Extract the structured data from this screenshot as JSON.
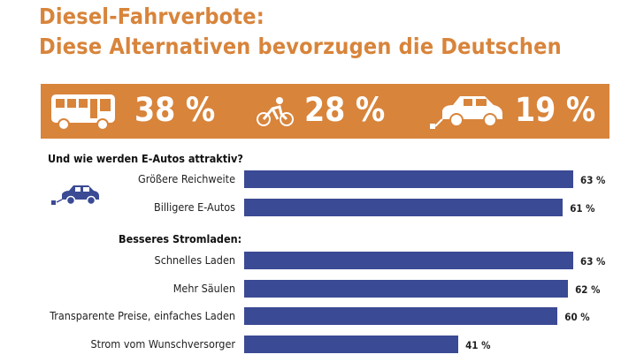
{
  "title": {
    "line1": "Diesel-Fahrverbote:",
    "line2": "Diese Alternativen bevorzugen die Deutschen"
  },
  "banner": {
    "items": [
      {
        "icon": "bus-icon",
        "value": "38 %"
      },
      {
        "icon": "bicycle-icon",
        "value": "28 %"
      },
      {
        "icon": "electric-car-icon",
        "value": "19 %"
      }
    ]
  },
  "colors": {
    "accent": "#d8843b",
    "bar": "#3b4a94"
  },
  "chart_data": {
    "type": "bar",
    "orientation": "horizontal",
    "xlim": [
      0,
      63
    ],
    "sections": [
      {
        "heading": "Und wie werden E-Autos attraktiv?",
        "icon": "electric-car-icon",
        "categories": [
          "Größere Reichweite",
          "Billigere E-Autos"
        ],
        "values": [
          63,
          61
        ],
        "labels": [
          "63 %",
          "61 %"
        ]
      },
      {
        "heading": "Besseres Stromladen:",
        "categories": [
          "Schnelles Laden",
          "Mehr Säulen",
          "Transparente Preise, einfaches Laden",
          "Strom vom Wunschversorger"
        ],
        "values": [
          63,
          62,
          60,
          41
        ],
        "labels": [
          "63 %",
          "62 %",
          "60 %",
          "41 %"
        ]
      }
    ]
  }
}
